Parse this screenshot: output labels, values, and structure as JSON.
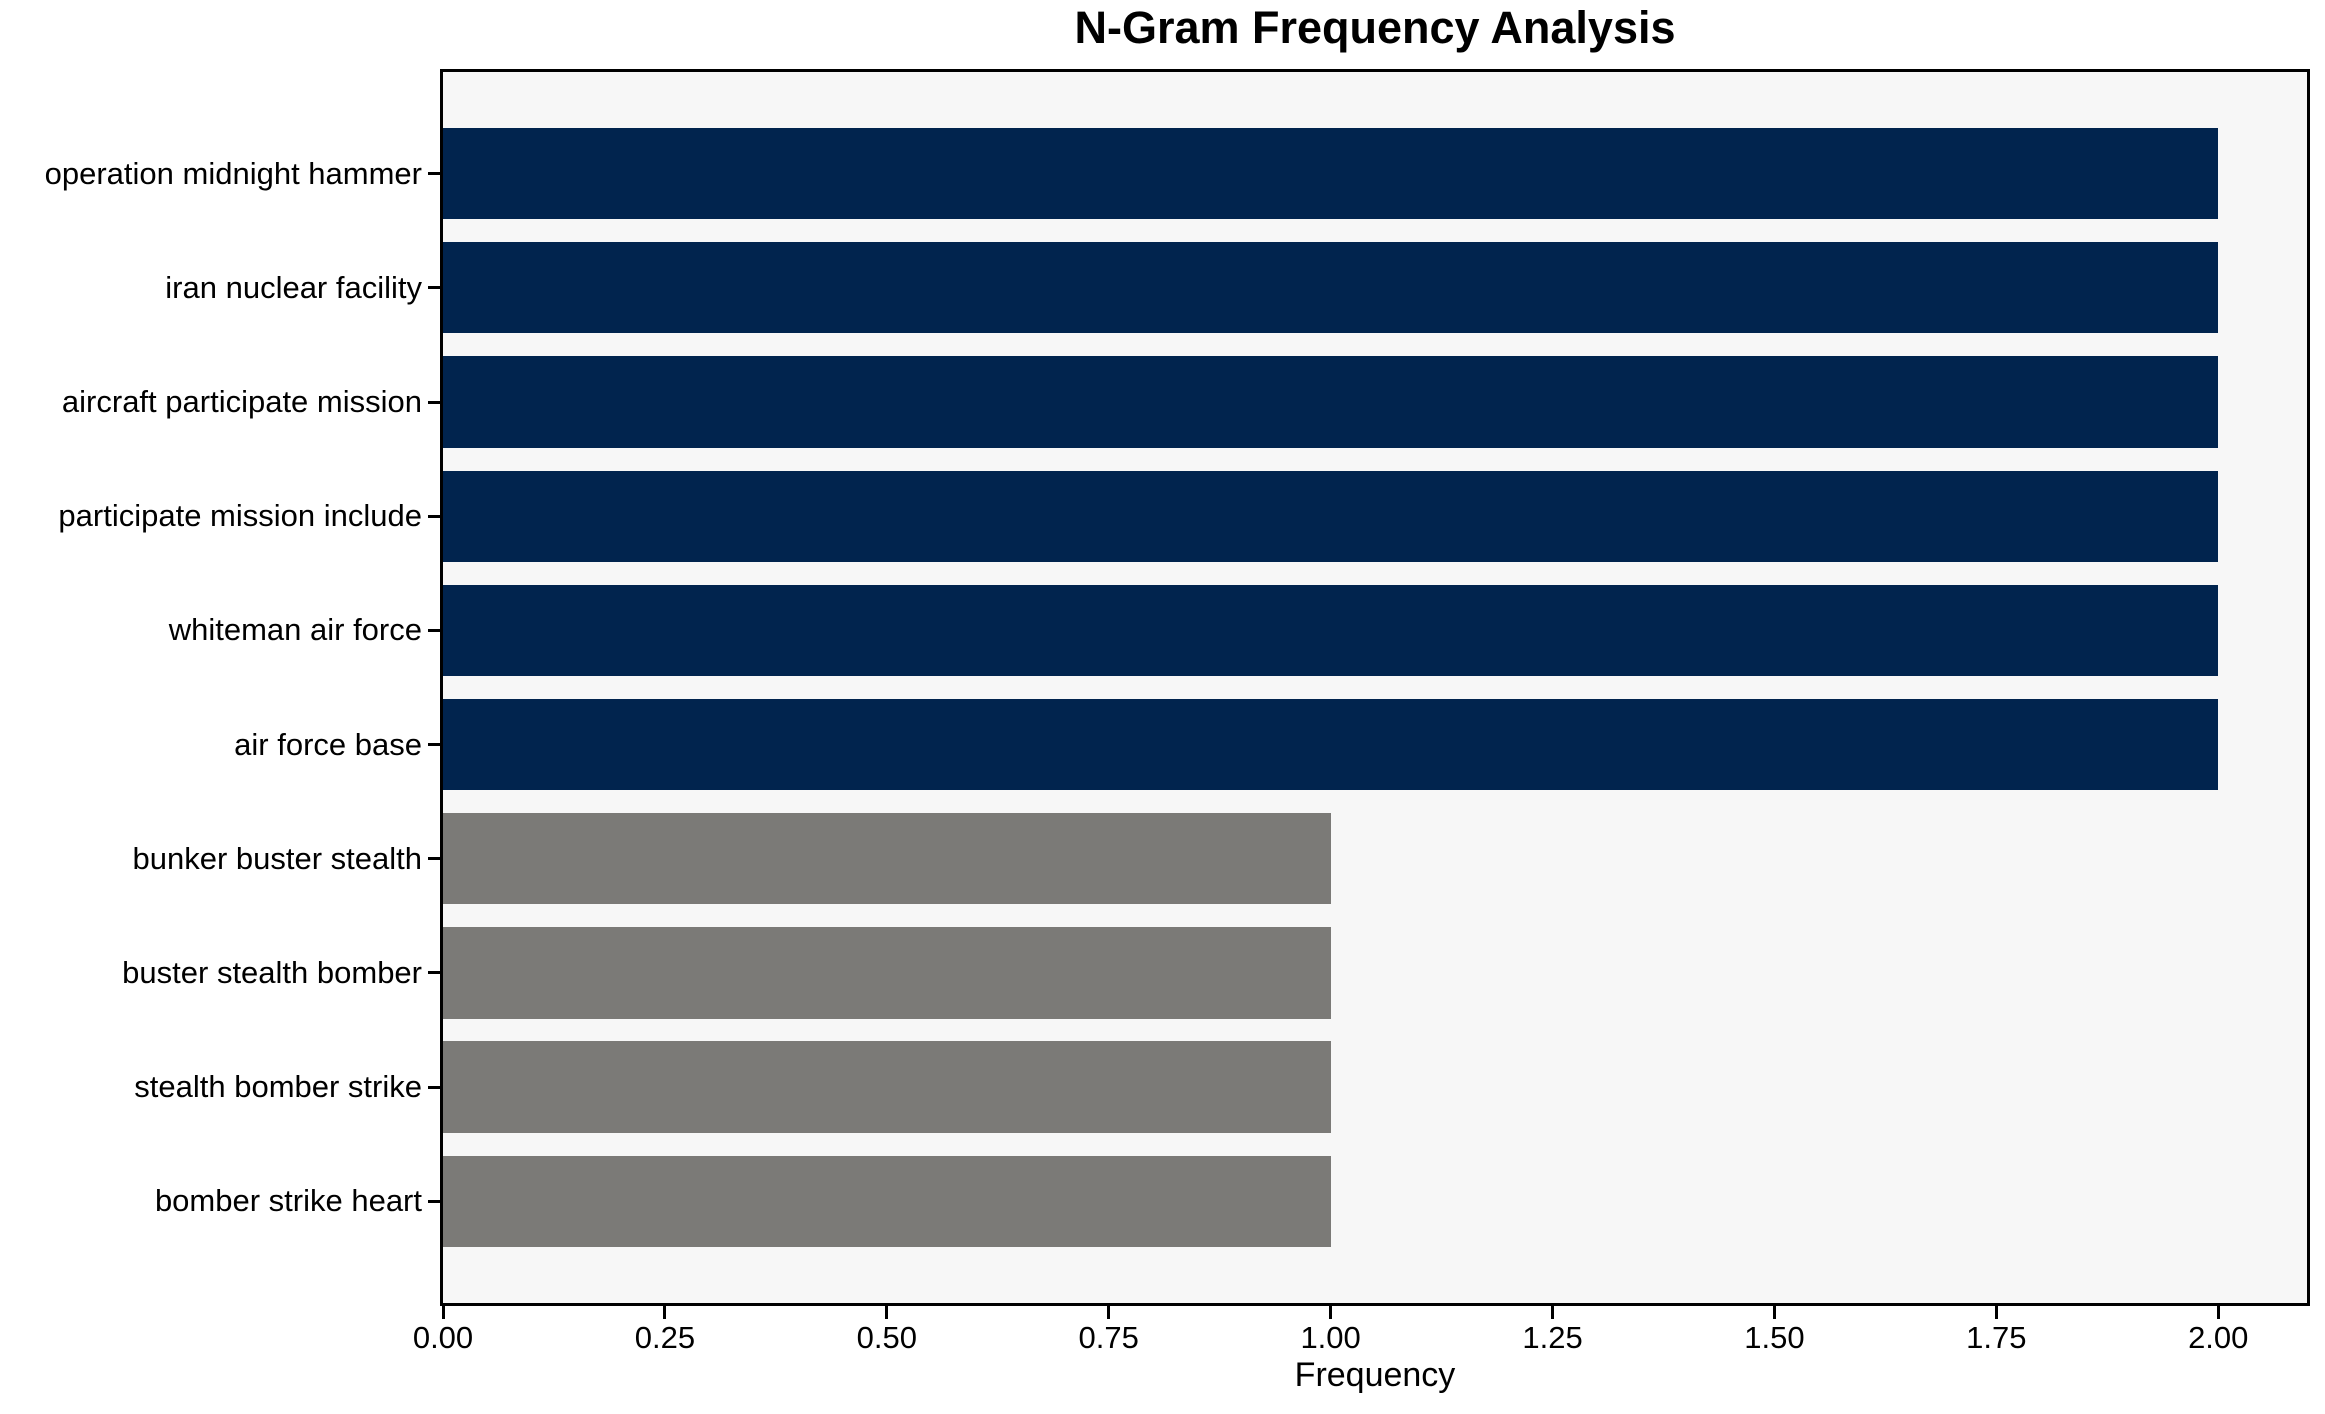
{
  "chart_data": {
    "type": "bar",
    "orientation": "horizontal",
    "title": "N-Gram Frequency Analysis",
    "xlabel": "Frequency",
    "ylabel": "",
    "categories": [
      "operation midnight hammer",
      "iran nuclear facility",
      "aircraft participate mission",
      "participate mission include",
      "whiteman air force",
      "air force base",
      "bunker buster stealth",
      "buster stealth bomber",
      "stealth bomber strike",
      "bomber strike heart"
    ],
    "values": [
      2,
      2,
      2,
      2,
      2,
      2,
      1,
      1,
      1,
      1
    ],
    "bar_colors": [
      "#01244e",
      "#01244e",
      "#01244e",
      "#01244e",
      "#01244e",
      "#01244e",
      "#7b7a77",
      "#7b7a77",
      "#7b7a77",
      "#7b7a77"
    ],
    "xlim": [
      0,
      2.1
    ],
    "xtick_values": [
      0,
      0.25,
      0.5,
      0.75,
      1.0,
      1.25,
      1.5,
      1.75,
      2.0
    ],
    "xtick_labels": [
      "0.00",
      "0.25",
      "0.50",
      "0.75",
      "1.00",
      "1.25",
      "1.50",
      "1.75",
      "2.00"
    ],
    "grid": false,
    "legend": null,
    "plot_background": "#f7f7f7",
    "figure_background": "#ffffff",
    "spine_color": "#000000"
  }
}
